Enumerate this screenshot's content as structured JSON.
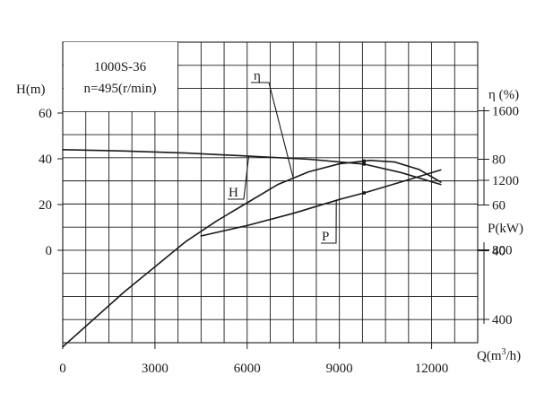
{
  "chart_data": {
    "type": "line",
    "title_lines": [
      "1000S-36",
      "n=495(r/min)"
    ],
    "x_axis": {
      "label": "Q(m³/h)",
      "label_base": "Q(m",
      "label_sup": "3",
      "label_tail": "/h)",
      "min": 0,
      "max": 13500,
      "ticks": [
        "0",
        "3000",
        "6000",
        "9000",
        "12000"
      ],
      "tick_values": [
        0,
        3000,
        6000,
        9000,
        12000
      ]
    },
    "left_axis": {
      "label": "H(m)",
      "min": -40,
      "max": 90,
      "ticks": [
        "0",
        "20",
        "40",
        "60"
      ],
      "tick_values": [
        0,
        20,
        40,
        60
      ]
    },
    "right_axis_eta": {
      "label": "η (%)",
      "ticks": [
        "40",
        "60",
        "80"
      ],
      "tick_values": [
        40,
        60,
        80
      ]
    },
    "right_axis_power": {
      "label": "P(kW)",
      "ticks": [
        "400",
        "800",
        "1200",
        "1600"
      ],
      "tick_values": [
        400,
        800,
        1200,
        1600
      ]
    },
    "grid": true,
    "series": [
      {
        "name": "H",
        "axis": "left",
        "points": [
          [
            0,
            44
          ],
          [
            2000,
            43.4
          ],
          [
            4000,
            42.5
          ],
          [
            6000,
            41.2
          ],
          [
            8000,
            39.8
          ],
          [
            9800,
            37.7
          ],
          [
            11000,
            34
          ],
          [
            12300,
            28.8
          ]
        ]
      },
      {
        "name": "η",
        "axis": "eta",
        "points": [
          [
            0,
            -2
          ],
          [
            1000,
            10
          ],
          [
            2000,
            22
          ],
          [
            3000,
            33
          ],
          [
            4000,
            44
          ],
          [
            5000,
            53
          ],
          [
            6000,
            61
          ],
          [
            7000,
            69
          ],
          [
            8000,
            74.5
          ],
          [
            9000,
            78
          ],
          [
            10000,
            79.5
          ],
          [
            10800,
            78.8
          ],
          [
            11600,
            75.5
          ],
          [
            12300,
            70
          ]
        ]
      },
      {
        "name": "P",
        "axis": "power",
        "points": [
          [
            4500,
            880
          ],
          [
            6000,
            940
          ],
          [
            7500,
            1010
          ],
          [
            9000,
            1090
          ],
          [
            9850,
            1130
          ],
          [
            11000,
            1190
          ],
          [
            12300,
            1260
          ]
        ]
      }
    ],
    "duty_point": {
      "q": 9800
    }
  }
}
